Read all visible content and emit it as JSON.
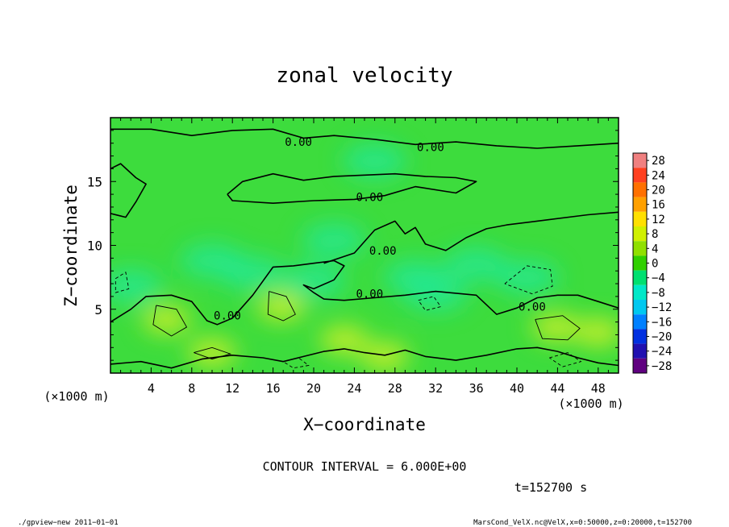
{
  "chart_data": {
    "type": "heatmap",
    "title": "zonal velocity",
    "xlabel": "X−coordinate",
    "ylabel": "Z−coordinate",
    "x_unit": "(×1000 m)",
    "y_unit": "(×1000 m)",
    "xlim": [
      0,
      50
    ],
    "ylim": [
      0,
      20
    ],
    "x_ticks": [
      4,
      8,
      12,
      16,
      20,
      24,
      28,
      32,
      36,
      40,
      44,
      48
    ],
    "y_ticks": [
      5,
      10,
      15
    ],
    "colorbar_levels": [
      28,
      24,
      20,
      16,
      12,
      8,
      4,
      0,
      -4,
      -8,
      -12,
      -16,
      -20,
      -24,
      -28
    ],
    "colorbar_labels": [
      "28",
      "24",
      "20",
      "16",
      "12",
      "8",
      "4",
      "0",
      "−4",
      "−8",
      "−12",
      "−16",
      "−20",
      "−24",
      "−28"
    ],
    "colorbar_colors": [
      "#f08080",
      "#ff4020",
      "#ff7000",
      "#ffa000",
      "#ffe000",
      "#d0f000",
      "#90e000",
      "#30d000",
      "#00e070",
      "#00e8c8",
      "#00c8f0",
      "#0080ff",
      "#0030e0",
      "#2010b0",
      "#600080"
    ],
    "contour_interval": 6.0,
    "contour_label_text": "0.00",
    "contour_labels": [
      {
        "x": 18.5,
        "z": 18.1
      },
      {
        "x": 31.5,
        "z": 17.7
      },
      {
        "x": 25.5,
        "z": 13.8
      },
      {
        "x": 26.8,
        "z": 9.6
      },
      {
        "x": 25.5,
        "z": 6.2
      },
      {
        "x": 11.5,
        "z": 4.5
      },
      {
        "x": 41.5,
        "z": 5.2
      }
    ],
    "zero_contours": [
      [
        [
          0,
          19.1
        ],
        [
          4,
          19.1
        ],
        [
          8,
          18.6
        ],
        [
          12,
          19.0
        ],
        [
          16,
          19.1
        ],
        [
          19,
          18.4
        ],
        [
          22,
          18.6
        ],
        [
          26,
          18.3
        ],
        [
          30,
          17.9
        ],
        [
          34,
          18.1
        ],
        [
          38,
          17.8
        ],
        [
          42,
          17.6
        ],
        [
          46,
          17.8
        ],
        [
          50,
          18.0
        ]
      ],
      [
        [
          11.5,
          14.0
        ],
        [
          13,
          15.0
        ],
        [
          16,
          15.6
        ],
        [
          19,
          15.1
        ],
        [
          22,
          15.4
        ],
        [
          25,
          15.5
        ],
        [
          28,
          15.6
        ],
        [
          31,
          15.4
        ],
        [
          34,
          15.3
        ],
        [
          36,
          15.0
        ],
        [
          34,
          14.1
        ],
        [
          30,
          14.6
        ],
        [
          27,
          13.9
        ],
        [
          24,
          13.6
        ],
        [
          20,
          13.5
        ],
        [
          16,
          13.3
        ],
        [
          12,
          13.5
        ],
        [
          11.5,
          14.0
        ]
      ],
      [
        [
          0,
          16.0
        ],
        [
          1,
          16.4
        ],
        [
          2.5,
          15.3
        ],
        [
          3.5,
          14.8
        ],
        [
          2.5,
          13.4
        ],
        [
          1.5,
          12.2
        ],
        [
          0,
          12.5
        ]
      ],
      [
        [
          0,
          4.0
        ],
        [
          2,
          5.0
        ],
        [
          3.5,
          6.0
        ],
        [
          6,
          6.1
        ],
        [
          8,
          5.6
        ],
        [
          9.5,
          4.1
        ],
        [
          10.5,
          3.8
        ],
        [
          12,
          4.3
        ],
        [
          14,
          6.1
        ],
        [
          16,
          8.3
        ],
        [
          18,
          8.4
        ],
        [
          20,
          8.6
        ],
        [
          22,
          8.8
        ],
        [
          23,
          8.4
        ],
        [
          22,
          7.3
        ],
        [
          20,
          6.6
        ],
        [
          19,
          6.9
        ],
        [
          20,
          6.3
        ],
        [
          21,
          5.8
        ],
        [
          23,
          5.7
        ],
        [
          26,
          5.9
        ],
        [
          29,
          6.1
        ],
        [
          32,
          6.4
        ],
        [
          36,
          6.1
        ],
        [
          38,
          4.6
        ],
        [
          40,
          5.1
        ],
        [
          42,
          5.9
        ],
        [
          44,
          6.1
        ],
        [
          46,
          6.1
        ],
        [
          48,
          5.6
        ],
        [
          50,
          5.1
        ]
      ],
      [
        [
          21,
          8.6
        ],
        [
          24,
          9.4
        ],
        [
          26,
          11.2
        ],
        [
          28,
          11.9
        ],
        [
          29,
          10.9
        ],
        [
          30,
          11.4
        ],
        [
          31,
          10.1
        ],
        [
          33,
          9.6
        ],
        [
          35,
          10.6
        ],
        [
          37,
          11.3
        ],
        [
          39,
          11.6
        ],
        [
          43,
          12.0
        ],
        [
          47,
          12.4
        ],
        [
          50,
          12.6
        ]
      ],
      [
        [
          0,
          0.7
        ],
        [
          3,
          0.9
        ],
        [
          6,
          0.4
        ],
        [
          9,
          1.1
        ],
        [
          12,
          1.4
        ],
        [
          15,
          1.2
        ],
        [
          17,
          0.9
        ],
        [
          19,
          1.3
        ],
        [
          21,
          1.7
        ],
        [
          23,
          1.9
        ],
        [
          25,
          1.6
        ],
        [
          27,
          1.4
        ],
        [
          29,
          1.8
        ],
        [
          31,
          1.3
        ],
        [
          34,
          1.0
        ],
        [
          37,
          1.4
        ],
        [
          40,
          1.9
        ],
        [
          42,
          2.0
        ],
        [
          44,
          1.7
        ],
        [
          46,
          1.2
        ],
        [
          48,
          0.8
        ],
        [
          50,
          0.6
        ]
      ]
    ],
    "positive_contours": [
      [
        [
          4.5,
          5.3
        ],
        [
          6.5,
          5.0
        ],
        [
          7.5,
          3.6
        ],
        [
          6,
          2.9
        ],
        [
          4.2,
          3.8
        ],
        [
          4.5,
          5.3
        ]
      ],
      [
        [
          15.6,
          6.4
        ],
        [
          17.3,
          6.0
        ],
        [
          18.2,
          4.6
        ],
        [
          17,
          4.1
        ],
        [
          15.5,
          4.6
        ],
        [
          15.6,
          6.4
        ]
      ],
      [
        [
          41.8,
          4.2
        ],
        [
          44.5,
          4.5
        ],
        [
          46.2,
          3.5
        ],
        [
          45,
          2.6
        ],
        [
          42.5,
          2.7
        ],
        [
          41.8,
          4.2
        ]
      ],
      [
        [
          8.2,
          1.6
        ],
        [
          10,
          2.0
        ],
        [
          11.8,
          1.5
        ],
        [
          10,
          1.1
        ],
        [
          8.2,
          1.6
        ]
      ]
    ],
    "negative_contours": [
      [
        [
          38.8,
          7.0
        ],
        [
          41,
          8.4
        ],
        [
          43.3,
          8.1
        ],
        [
          43.5,
          6.8
        ],
        [
          41.5,
          6.2
        ],
        [
          38.8,
          7.0
        ]
      ],
      [
        [
          0.5,
          7.4
        ],
        [
          1.5,
          7.9
        ],
        [
          1.8,
          6.6
        ],
        [
          0.5,
          6.3
        ],
        [
          0.5,
          7.4
        ]
      ],
      [
        [
          30.3,
          5.7
        ],
        [
          31.8,
          6.0
        ],
        [
          32.5,
          5.2
        ],
        [
          31,
          4.9
        ],
        [
          30.3,
          5.7
        ]
      ],
      [
        [
          43.2,
          1.2
        ],
        [
          45,
          1.6
        ],
        [
          46.3,
          0.9
        ],
        [
          44.5,
          0.5
        ],
        [
          43.2,
          1.2
        ]
      ],
      [
        [
          17,
          0.9
        ],
        [
          18.5,
          1.2
        ],
        [
          19.5,
          0.6
        ],
        [
          18,
          0.4
        ],
        [
          17,
          0.9
        ]
      ]
    ],
    "fields": {
      "positive_patches": [
        [
          5.5,
          4.2
        ],
        [
          16.8,
          5.2
        ],
        [
          43.8,
          3.6
        ],
        [
          10,
          1.6
        ],
        [
          27,
          1.3
        ],
        [
          23,
          2.6
        ],
        [
          48,
          3.2
        ]
      ],
      "negative_patches": [
        [
          41,
          7.5
        ],
        [
          30,
          7.5
        ],
        [
          20,
          7.2
        ],
        [
          2,
          6.8
        ],
        [
          32,
          6.2
        ],
        [
          14,
          7.8
        ],
        [
          36,
          8.5
        ],
        [
          26,
          16.6
        ],
        [
          10,
          8.8
        ],
        [
          22,
          10.4
        ]
      ]
    }
  },
  "annotations": {
    "contour_interval_text": "CONTOUR INTERVAL = 6.000E+00",
    "time_text": "t=152700 s",
    "footer_left": "./gpview−new   2011−01−01",
    "footer_right": "MarsCond_VelX.nc@VelX,x=0:50000,z=0:20000,t=152700"
  }
}
